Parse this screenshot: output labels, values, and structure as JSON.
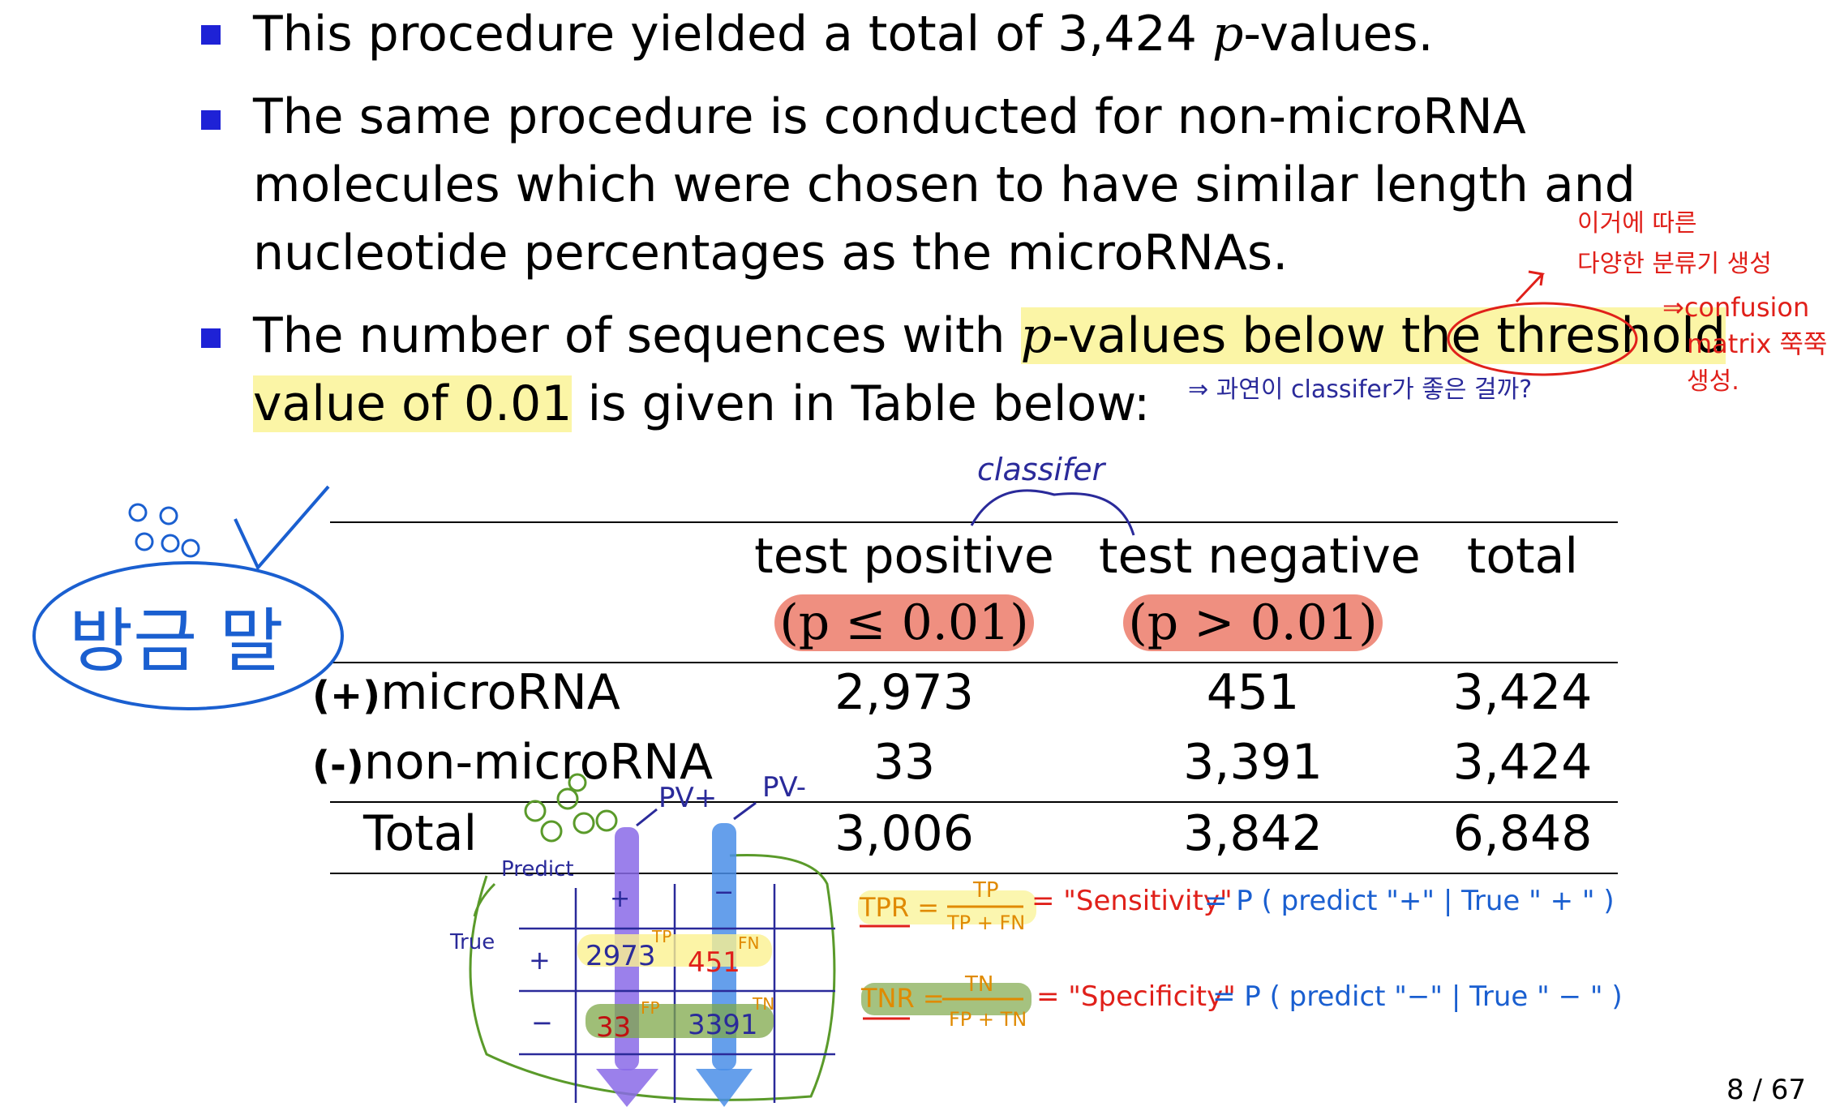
{
  "bullets": [
    {
      "pre": "This procedure yielded a total of 3,424 ",
      "pvar": "p",
      "post": "-values."
    },
    {
      "lines": [
        "The same procedure is conducted for non-microRNA",
        "molecules which were chosen to have similar length and",
        "nucleotide percentages as the microRNAs."
      ]
    },
    {
      "line1_pre": "The number of sequences with ",
      "pvar": "p",
      "line1_hl": "-values below the ",
      "line1_circ": "threshold",
      "line2_hl": "value of 0.01",
      "line2_post": " is given in Table below:"
    }
  ],
  "table": {
    "headers": {
      "positive": "test positive",
      "positive_cond": "(p ≤ 0.01)",
      "negative": "test negative",
      "negative_cond": "(p > 0.01)",
      "total": "total"
    },
    "rows": [
      {
        "mark": "(+)",
        "label": "microRNA",
        "pos": "2,973",
        "neg": "451",
        "total": "3,424"
      },
      {
        "mark": "(-)",
        "label": "non-microRNA",
        "pos": "33",
        "neg": "3,391",
        "total": "3,424"
      },
      {
        "mark": "",
        "label": "Total",
        "pos": "3,006",
        "neg": "3,842",
        "total": "6,848"
      }
    ]
  },
  "annotations": {
    "korean_right_1": "이거에 따른",
    "korean_right_2": "다양한 분류기 생성",
    "confusion_1": "⇒confusion",
    "confusion_2": "matrix 쭉쭉",
    "confusion_3": "생성.",
    "korean_mid": "⇒ 과연이 classifer가 좋은 걸까?",
    "classifier": "classifer",
    "korean_left": "방금 말",
    "pv_plus": "PV+",
    "pv_minus": "PV-",
    "predict": "Predict",
    "true_label": "True",
    "cm_plus_col": "+",
    "cm_minus_col": "−",
    "cm_plus_row": "+",
    "cm_minus_row": "−",
    "tp_val": "2973",
    "tp": "TP",
    "fn_val": "451",
    "fn": "FN",
    "fp_val": "33",
    "fp": "FP",
    "tn_val": "3391",
    "tn": "TN",
    "tpr_lhs": "TPR =",
    "tpr_num": "TP",
    "tpr_den": "TP + FN",
    "tpr_name": "= \"Sensitivity\"",
    "tpr_prob": "= P ( predict \"+\" | True \" + \" )",
    "tnr_lhs": "TNR =",
    "tnr_num": "TN",
    "tnr_den": "FP + TN",
    "tnr_name": "= \"Specificity\"",
    "tnr_prob": "= P ( predict \"−\" | True \" − \" )"
  },
  "page": "8 / 67",
  "colors": {
    "bullet": "#1e22d6",
    "highlight": "#fbf5a6",
    "red_marker": "#ef8f80",
    "pen_red": "#e0201a",
    "pen_navy": "#2a2a9a",
    "pen_blue": "#1a5fd0",
    "pen_green": "#5a9a2a",
    "pen_orange": "#e08a00"
  }
}
